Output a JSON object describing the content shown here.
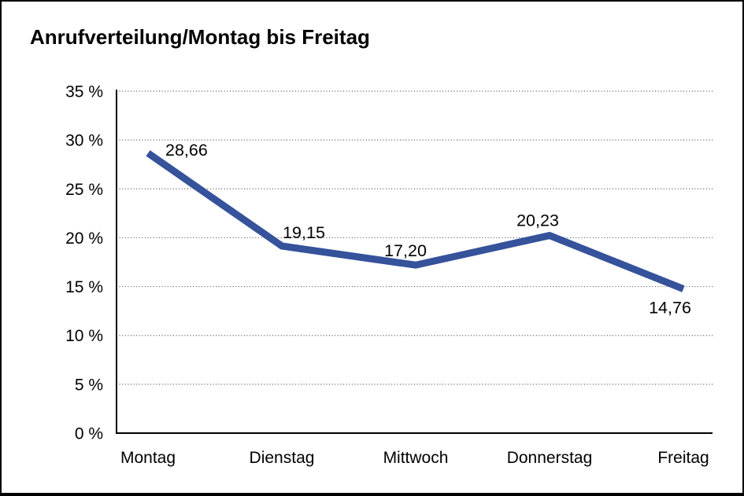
{
  "chart": {
    "title": "Anrufverteilung/Montag bis Freitag"
  },
  "chart_data": {
    "type": "line",
    "title": "Anrufverteilung/Montag bis Freitag",
    "categories": [
      "Montag",
      "Dienstag",
      "Mittwoch",
      "Donnerstag",
      "Freitag"
    ],
    "values": [
      28.66,
      19.15,
      17.2,
      20.23,
      14.76
    ],
    "value_labels": [
      "28,66",
      "19,15",
      "17,20",
      "20,23",
      "14,76"
    ],
    "xlabel": "",
    "ylabel": "",
    "ylim": [
      0,
      35
    ],
    "y_tick_step": 5,
    "y_tick_labels": [
      "0 %",
      "5 %",
      "10 %",
      "15 %",
      "20 %",
      "25 %",
      "30 %",
      "35 %"
    ],
    "grid": "horizontal-dotted",
    "legend": "none",
    "colors": {
      "line": "#35529B",
      "grid": "#555555",
      "axis": "#000000",
      "text": "#000000",
      "background": "#FFFFFF",
      "frame_border": "#000000"
    }
  }
}
